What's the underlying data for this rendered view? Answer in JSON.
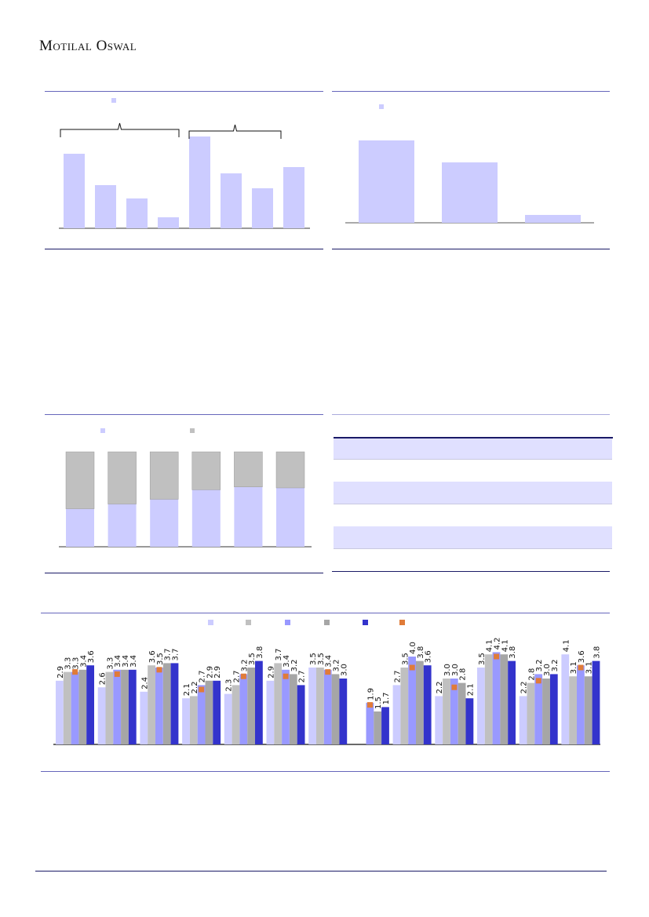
{
  "header": {
    "brand": "Motilal Oswal"
  },
  "colors": {
    "rule": "#6666bb",
    "series": [
      "#ccccff",
      "#c0c0c0",
      "#9999ff",
      "#a6a6a6",
      "#3333cc"
    ],
    "marker": "#e07b39"
  },
  "chart_data": [
    {
      "type": "bar",
      "values": [
        95,
        55,
        38,
        14,
        117,
        70,
        51,
        78
      ],
      "legend": "top",
      "grid": false,
      "bracket_groups": [
        [
          0,
          3
        ],
        [
          4,
          6
        ]
      ]
    },
    {
      "type": "bar",
      "values": [
        105,
        77,
        10
      ],
      "legend": "top-left",
      "grid": false
    },
    {
      "type": "bar",
      "stacked": true,
      "series": [
        {
          "values": [
            40,
            45,
            50,
            60,
            63,
            62
          ]
        },
        {
          "values": [
            60,
            55,
            50,
            40,
            37,
            38
          ]
        }
      ],
      "legend": "top",
      "grid": false
    },
    {
      "type": "table",
      "rows": 3
    },
    {
      "type": "bar",
      "legend": "top",
      "grid": false,
      "series": [
        {
          "values": [
            2.9,
            2.6,
            2.4,
            2.1,
            2.3,
            2.9,
            3.5,
            null,
            2.7,
            2.2,
            3.5,
            2.2,
            4.1
          ]
        },
        {
          "values": [
            3.3,
            3.3,
            3.6,
            2.2,
            2.7,
            3.7,
            3.5,
            null,
            3.5,
            3.0,
            4.1,
            2.8,
            3.1
          ]
        },
        {
          "values": [
            3.3,
            3.4,
            3.5,
            2.7,
            3.2,
            3.4,
            3.4,
            1.9,
            4.0,
            3.0,
            4.2,
            3.2,
            3.6
          ]
        },
        {
          "values": [
            3.4,
            3.4,
            3.7,
            2.9,
            3.5,
            3.2,
            3.2,
            1.5,
            3.8,
            2.8,
            4.1,
            3.0,
            3.1
          ]
        },
        {
          "values": [
            3.6,
            3.4,
            3.7,
            2.9,
            3.8,
            2.7,
            3.0,
            1.7,
            3.6,
            2.1,
            3.8,
            3.2,
            3.8
          ]
        }
      ],
      "markers": [
        3.3,
        3.2,
        3.4,
        2.5,
        3.1,
        3.1,
        3.3,
        1.8,
        3.5,
        2.6,
        4.0,
        2.9,
        3.5
      ]
    }
  ]
}
